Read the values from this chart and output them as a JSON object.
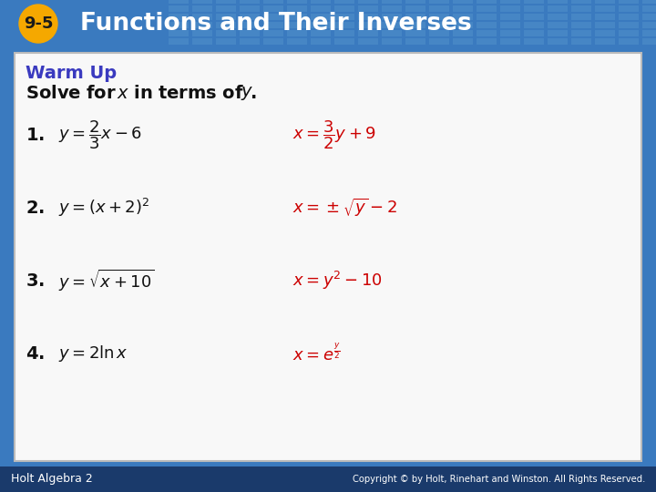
{
  "header_bg_color": "#3a7abf",
  "header_text": "Functions and Their Inverses",
  "header_number": "9-5",
  "header_number_bg": "#f5a800",
  "header_text_color": "#ffffff",
  "warm_up_color": "#3a3abf",
  "warm_up_text": "Warm Up",
  "subtitle_color": "#111111",
  "answer_color": "#cc0000",
  "footer_bg": "#1a3a6b",
  "footer_left": "Holt Algebra 2",
  "footer_right": "Copyright © by Holt, Rinehart and Winston. All Rights Reserved.",
  "footer_text_color": "#ffffff",
  "grid_color": "#5a9ad0",
  "body_bg": "#f8f8f8",
  "body_border": "#bbbbbb"
}
